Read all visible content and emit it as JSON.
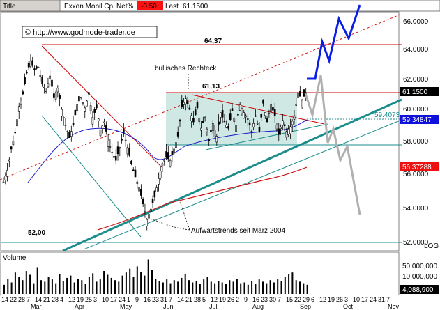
{
  "header": {
    "title_label": "Title",
    "instrument": "Exxon Mobil Cp",
    "change_label": "Net%",
    "change_value": "-0.50",
    "last_label": "Last",
    "last_value": "61.1500"
  },
  "watermark": "© http://www.godmode-trader.de",
  "colors": {
    "price_bar": "#000000",
    "sma_blue": "#1a1acc",
    "sma_red": "#cc1111",
    "trend_teal": "#1a8c8c",
    "rect_fill": "#cfe8e4",
    "forecast_bull": "#0a1fe6",
    "forecast_bear": "#b0b0b0",
    "level_red": "#cc0000",
    "badge_blue": "#1010dd",
    "badge_red": "#ee1111",
    "badge_black": "#000000"
  },
  "annotations": {
    "high_label": "64,37",
    "rect_top_label": "61,13",
    "low_label": "52,00",
    "pattern_label": "bullisches Rechteck",
    "trend_label": "Aufwärtstrends seit März 2004",
    "channel_value": "59.4073"
  },
  "price_axis": {
    "ticks": [
      "66.0000",
      "64.0000",
      "62.0000",
      "60.0000",
      "58.0000",
      "56.0000",
      "54.0000",
      "52.0000"
    ],
    "log_label": "LOG"
  },
  "price_badges": [
    {
      "value": "61.1500",
      "color": "black"
    },
    {
      "value": "59.34847",
      "color": "blue"
    },
    {
      "value": "56.37288",
      "color": "red"
    }
  ],
  "volume_panel": {
    "label": "Volume",
    "ticks": [
      "50,000,000",
      "10,000,000"
    ],
    "current": "4,088,900"
  },
  "date_axis": {
    "day_labels": [
      "14",
      "22",
      "28",
      "7",
      "14",
      "21",
      "28",
      "4",
      "12",
      "19",
      "25",
      "3",
      "10",
      "17",
      "24",
      "1",
      "9",
      "16",
      "23",
      "31",
      "7",
      "14",
      "21",
      "28",
      "5",
      "12",
      "19",
      "26",
      "2",
      "9",
      "16",
      "23",
      "30",
      "7",
      "15",
      "22",
      "29",
      "6",
      "12",
      "19",
      "26",
      "3",
      "10",
      "17",
      "24",
      "31",
      "7"
    ],
    "month_labels": [
      "Mar",
      "Apr",
      "May",
      "Jun",
      "Jul",
      "Aug",
      "Sep",
      "Oct",
      "Nov"
    ]
  },
  "chart_data": {
    "type": "candlestick",
    "y_scale": "log",
    "ylim": [
      51.9,
      66.8
    ],
    "price_path": [
      [
        0,
        55.5
      ],
      [
        2,
        56.2
      ],
      [
        4,
        57.5
      ],
      [
        6,
        58.5
      ],
      [
        8,
        60.2
      ],
      [
        10,
        61.0
      ],
      [
        12,
        62.4
      ],
      [
        14,
        63.2
      ],
      [
        16,
        62.6
      ],
      [
        18,
        62.8
      ],
      [
        20,
        61.7
      ],
      [
        22,
        61.2
      ],
      [
        24,
        62.2
      ],
      [
        26,
        60.8
      ],
      [
        28,
        61.4
      ],
      [
        30,
        60.0
      ],
      [
        32,
        59.0
      ],
      [
        34,
        58.2
      ],
      [
        36,
        59.0
      ],
      [
        38,
        60.3
      ],
      [
        40,
        60.8
      ],
      [
        42,
        60.1
      ],
      [
        44,
        61.0
      ],
      [
        46,
        59.5
      ],
      [
        48,
        60.1
      ],
      [
        50,
        58.7
      ],
      [
        52,
        59.2
      ],
      [
        54,
        58.0
      ],
      [
        56,
        57.3
      ],
      [
        58,
        56.8
      ],
      [
        60,
        57.6
      ],
      [
        62,
        58.5
      ],
      [
        64,
        57.6
      ],
      [
        66,
        56.6
      ],
      [
        68,
        55.8
      ],
      [
        70,
        55.2
      ],
      [
        72,
        54.2
      ],
      [
        74,
        53.3
      ],
      [
        76,
        53.9
      ],
      [
        78,
        54.6
      ],
      [
        80,
        55.7
      ],
      [
        82,
        56.6
      ],
      [
        84,
        57.0
      ],
      [
        86,
        56.8
      ],
      [
        88,
        57.5
      ],
      [
        90,
        58.3
      ],
      [
        92,
        60.2
      ],
      [
        94,
        60.7
      ],
      [
        96,
        60.0
      ],
      [
        98,
        59.2
      ],
      [
        100,
        60.1
      ],
      [
        102,
        58.8
      ],
      [
        104,
        59.5
      ],
      [
        106,
        58.0
      ],
      [
        108,
        59.1
      ],
      [
        110,
        58.3
      ],
      [
        112,
        59.8
      ],
      [
        114,
        59.2
      ],
      [
        116,
        58.8
      ],
      [
        118,
        59.9
      ],
      [
        120,
        59.0
      ],
      [
        122,
        60.3
      ],
      [
        124,
        59.8
      ],
      [
        126,
        59.4
      ],
      [
        128,
        58.6
      ],
      [
        130,
        59.6
      ],
      [
        132,
        58.6
      ],
      [
        134,
        60.4
      ],
      [
        136,
        59.2
      ],
      [
        138,
        60.3
      ],
      [
        140,
        59.6
      ],
      [
        142,
        58.4
      ],
      [
        144,
        59.3
      ],
      [
        146,
        58.6
      ],
      [
        148,
        58.9
      ],
      [
        150,
        59.6
      ],
      [
        152,
        61.1
      ],
      [
        154,
        60.6
      ],
      [
        156,
        61.1
      ]
    ],
    "volume": [
      12,
      20,
      15,
      28,
      22,
      18,
      30,
      25,
      14,
      35,
      18,
      16,
      22,
      19,
      14,
      26,
      17,
      21,
      24,
      15,
      20,
      18,
      13,
      22,
      27,
      16,
      19,
      30,
      25,
      21,
      18,
      16,
      24,
      28,
      33,
      22,
      36,
      29,
      24,
      45,
      31,
      20,
      17,
      15,
      19,
      14,
      18,
      16,
      21,
      26,
      18,
      15,
      17,
      13,
      19,
      22,
      16,
      14,
      17,
      15,
      13,
      18,
      16,
      20,
      14,
      15,
      12,
      17,
      13,
      19,
      16,
      14,
      18,
      15,
      20,
      17,
      22,
      26,
      28,
      18,
      16,
      14,
      12
    ]
  }
}
